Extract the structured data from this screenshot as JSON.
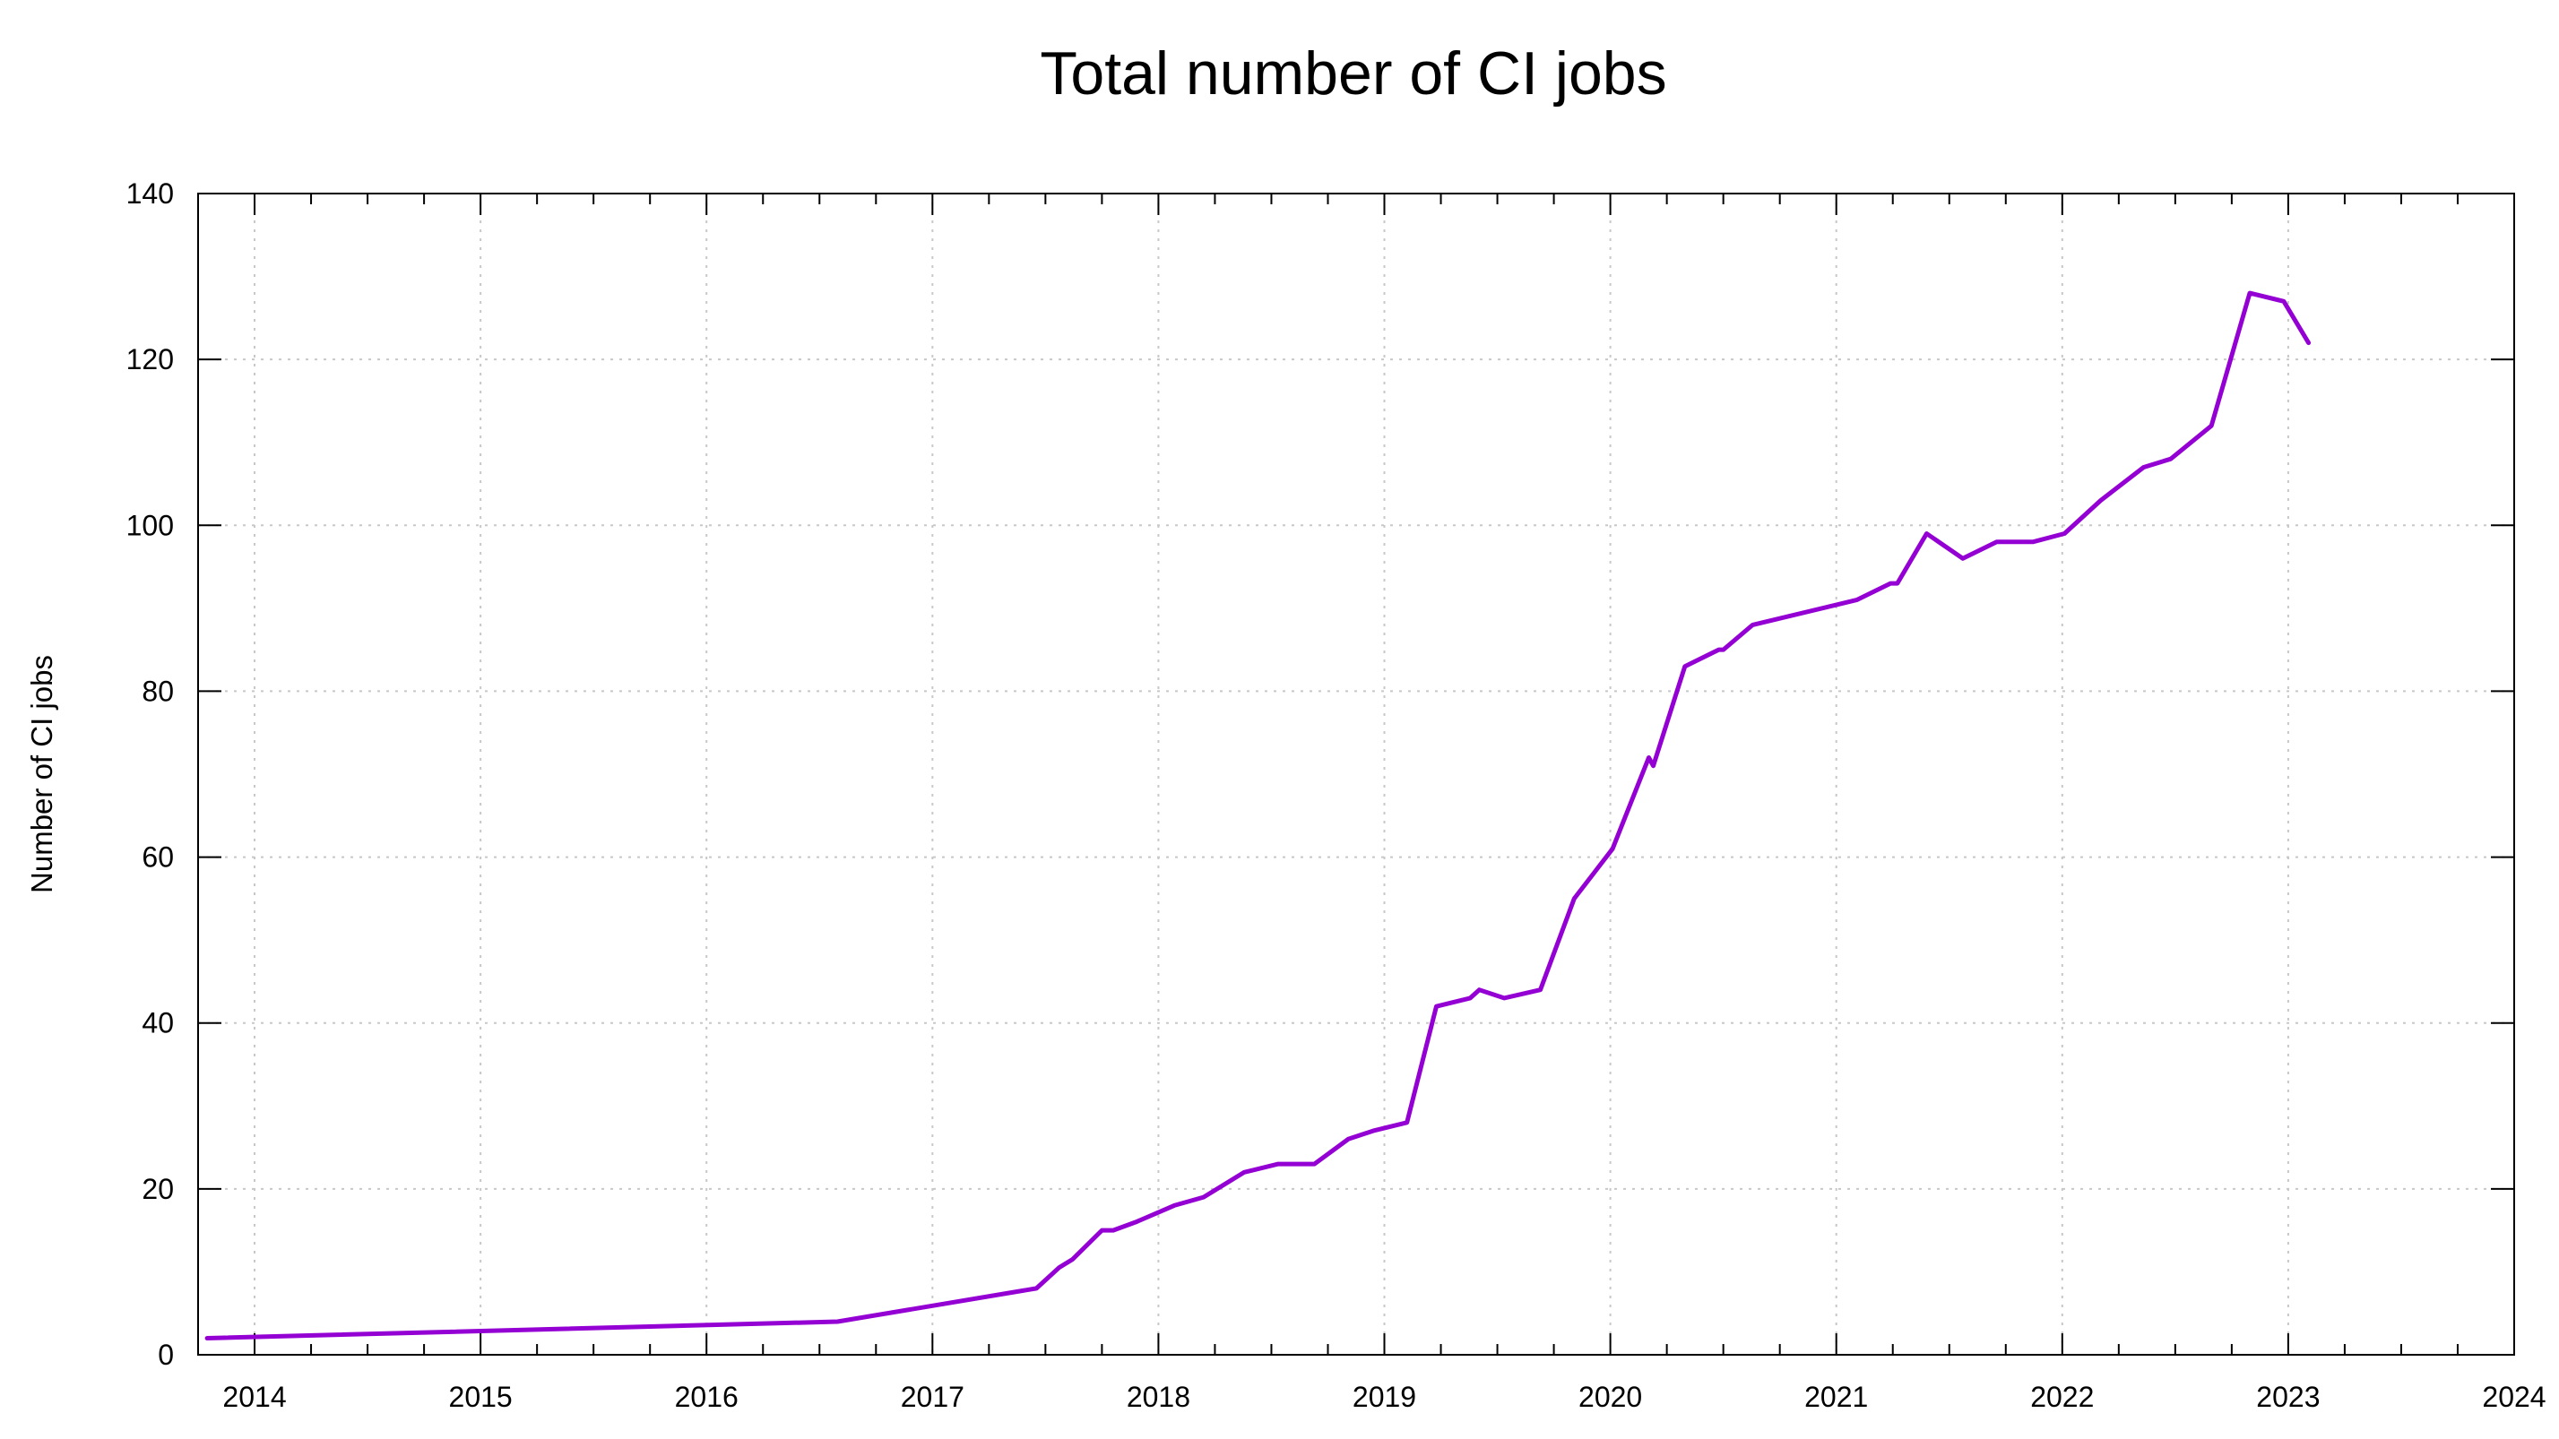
{
  "chart_data": {
    "type": "line",
    "title": "Total number of CI jobs",
    "xlabel": "",
    "ylabel": "Number of CI jobs",
    "xlim": [
      2013.75,
      2024.0
    ],
    "ylim": [
      0,
      140
    ],
    "x_ticks": [
      "2014",
      "2015",
      "2016",
      "2017",
      "2018",
      "2019",
      "2020",
      "2021",
      "2022",
      "2023",
      "2024"
    ],
    "y_ticks": [
      "0",
      "20",
      "40",
      "60",
      "80",
      "100",
      "120",
      "140"
    ],
    "grid": true,
    "colors": {
      "series": "#9400d3"
    },
    "series": [
      {
        "x": [
          2013.79,
          2016.58,
          2017.46,
          2017.56,
          2017.62,
          2017.75,
          2017.8,
          2017.9,
          2018.07,
          2018.2,
          2018.38,
          2018.53,
          2018.69,
          2018.84,
          2018.95,
          2019.1,
          2019.23,
          2019.38,
          2019.42,
          2019.53,
          2019.69,
          2019.84,
          2020.01,
          2020.17,
          2020.19,
          2020.33,
          2020.48,
          2020.5,
          2020.63,
          2021.09,
          2021.24,
          2021.27,
          2021.4,
          2021.56,
          2021.71,
          2021.87,
          2022.01,
          2022.17,
          2022.36,
          2022.48,
          2022.66,
          2022.83,
          2022.98,
          2023.09
        ],
        "y": [
          2,
          4,
          8,
          10.5,
          11.5,
          15,
          15,
          16,
          18,
          19,
          22,
          23,
          23,
          26,
          27,
          28,
          42,
          43,
          44,
          43,
          44,
          55,
          61,
          72,
          71,
          83,
          85,
          85,
          88,
          91,
          93,
          93,
          99,
          96,
          98,
          98,
          99,
          103,
          107,
          108,
          112,
          128,
          127,
          122
        ]
      }
    ]
  }
}
